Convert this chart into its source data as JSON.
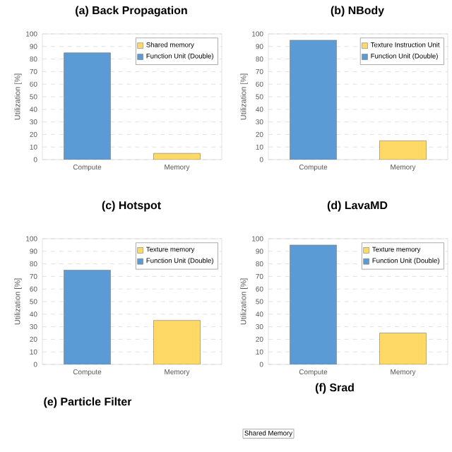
{
  "chart_data": [
    {
      "type": "bar",
      "title": "(a) Back Propagation",
      "ylabel": "Utilization [%]",
      "categories": [
        "Compute",
        "Memory"
      ],
      "ylim": [
        0,
        100
      ],
      "yticks": [
        0,
        10,
        20,
        30,
        40,
        50,
        60,
        70,
        80,
        90,
        100
      ],
      "grid": "y",
      "legend": "top right",
      "series": [
        {
          "name": "Shared memory",
          "color": "#ffd966",
          "values": [
            null,
            5
          ]
        },
        {
          "name": "Function Unit (Double)",
          "color": "#5b9bd5",
          "values": [
            85,
            null
          ]
        }
      ]
    },
    {
      "type": "bar",
      "title": "(b) NBody",
      "ylabel": "Utilization [%]",
      "categories": [
        "Compute",
        "Memory"
      ],
      "ylim": [
        0,
        100
      ],
      "yticks": [
        0,
        10,
        20,
        30,
        40,
        50,
        60,
        70,
        80,
        90,
        100
      ],
      "grid": "y",
      "legend": "top right",
      "series": [
        {
          "name": "Texture Instruction Unit",
          "color": "#ffd966",
          "values": [
            null,
            15
          ]
        },
        {
          "name": "Function Unit (Double)",
          "color": "#5b9bd5",
          "values": [
            95,
            null
          ]
        }
      ]
    },
    {
      "type": "bar",
      "title": "(c) Hotspot",
      "ylabel": "Utilization [%]",
      "categories": [
        "Compute",
        "Memory"
      ],
      "ylim": [
        0,
        100
      ],
      "yticks": [
        0,
        10,
        20,
        30,
        40,
        50,
        60,
        70,
        80,
        90,
        100
      ],
      "grid": "y",
      "legend": "top right",
      "series": [
        {
          "name": "Texture memory",
          "color": "#ffd966",
          "values": [
            null,
            35
          ]
        },
        {
          "name": "Function Unit (Double)",
          "color": "#5b9bd5",
          "values": [
            75,
            null
          ]
        }
      ]
    },
    {
      "type": "bar",
      "title": "(d) LavaMD",
      "ylabel": "Utilization [%]",
      "categories": [
        "Compute",
        "Memory"
      ],
      "ylim": [
        0,
        100
      ],
      "yticks": [
        0,
        10,
        20,
        30,
        40,
        50,
        60,
        70,
        80,
        90,
        100
      ],
      "grid": "y",
      "legend": "top right",
      "series": [
        {
          "name": "Texture memory",
          "color": "#ffd966",
          "values": [
            null,
            25
          ]
        },
        {
          "name": "Function Unit (Double)",
          "color": "#5b9bd5",
          "values": [
            95,
            null
          ]
        }
      ]
    },
    {
      "type": "other",
      "title": "(e) Particle Filter",
      "annotations": [
        "Shared Memory"
      ]
    },
    {
      "type": "other",
      "title": "(f) Srad"
    }
  ]
}
